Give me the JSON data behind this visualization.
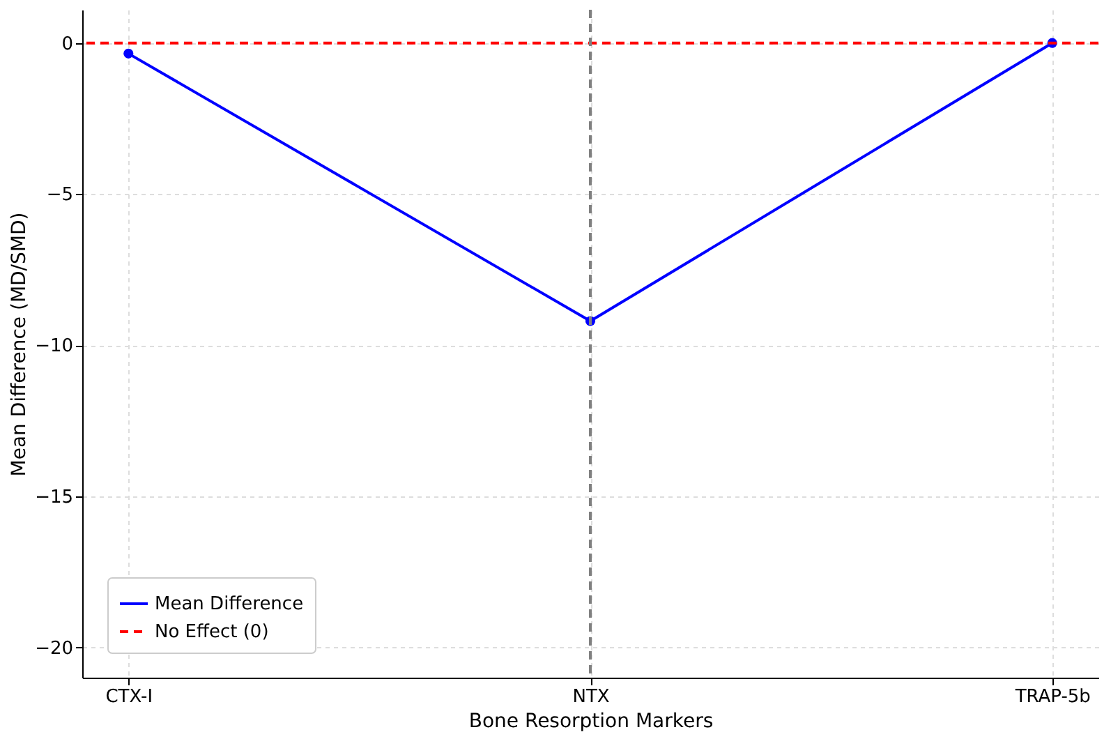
{
  "chart_data": {
    "type": "line",
    "xlabel": "Bone Resorption Markers",
    "ylabel": "Mean Difference (MD/SMD)",
    "categories": [
      "CTX-I",
      "NTX",
      "TRAP-5b"
    ],
    "series": [
      {
        "name": "Mean Difference",
        "color": "#0000ff",
        "values": [
          -0.35,
          -9.2,
          0
        ]
      }
    ],
    "ylim": [
      -21,
      1.1
    ],
    "yticks": [
      0,
      -5,
      -10,
      -15,
      -20
    ],
    "ref_lines": [
      {
        "axis": "y",
        "value": 0,
        "label": "No Effect (0)",
        "color": "#ff0000",
        "line_style": "dashed"
      },
      {
        "axis": "x",
        "value": "NTX",
        "color": "#808080",
        "line_style": "dashed"
      }
    ],
    "grid": true,
    "legend": "bottom left",
    "marker": "circle",
    "line_style": "solid"
  }
}
